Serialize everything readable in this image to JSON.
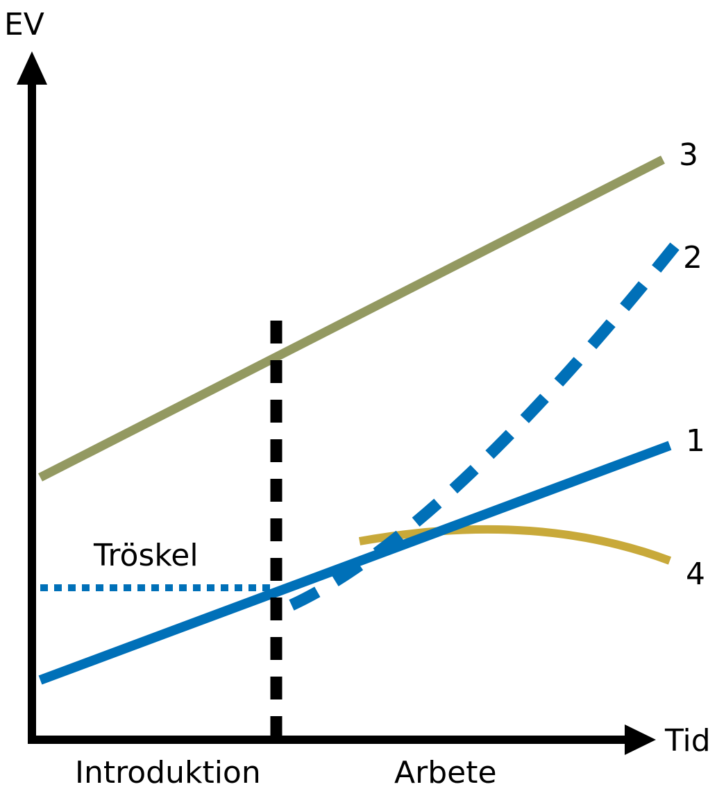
{
  "chart_data": {
    "type": "line",
    "ylabel": "EV",
    "xlabel": "Tid",
    "threshold_label": "Tröskel",
    "phases": [
      "Introduktion",
      "Arbete"
    ],
    "series": [
      {
        "name": "1",
        "color": "#0070b8",
        "style": "solid"
      },
      {
        "name": "2",
        "color": "#0070b8",
        "style": "dashed"
      },
      {
        "name": "3",
        "color": "#939961",
        "style": "solid"
      },
      {
        "name": "4",
        "color": "#c8a93a",
        "style": "solid"
      }
    ],
    "axis_color": "#000000",
    "threshold_color": "#0070b8",
    "grid": false
  }
}
